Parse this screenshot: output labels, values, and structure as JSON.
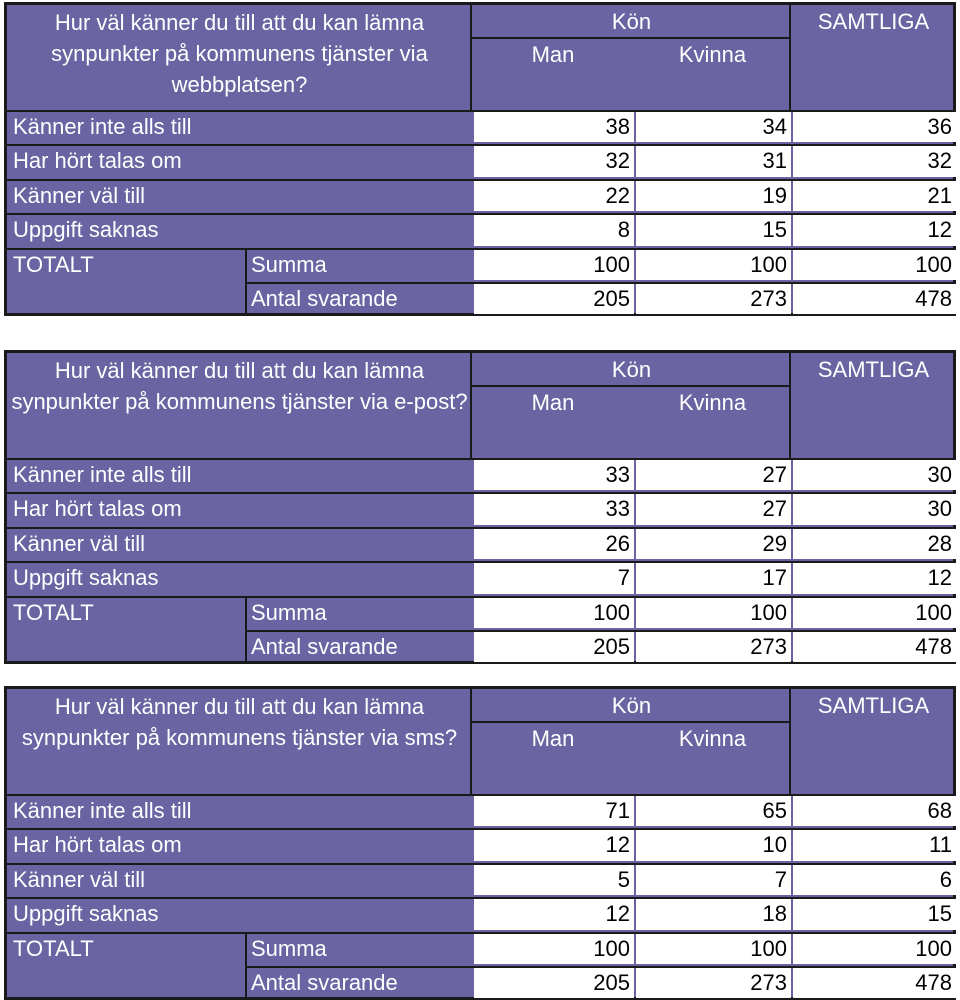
{
  "tables": [
    {
      "question": "Hur väl känner du till att du kan lämna synpunkter på kommunens tjänster via webbplatsen?",
      "group_header": "Kön",
      "total_header": "SAMTLIGA",
      "col_man": "Man",
      "col_kvinna": "Kvinna",
      "rows": [
        {
          "label": "Känner inte alls till",
          "man": "38",
          "kvinna": "34",
          "samtliga": "36"
        },
        {
          "label": "Har hört talas om",
          "man": "32",
          "kvinna": "31",
          "samtliga": "32"
        },
        {
          "label": "Känner väl till",
          "man": "22",
          "kvinna": "19",
          "samtliga": "21"
        },
        {
          "label": "Uppgift saknas",
          "man": "8",
          "kvinna": "15",
          "samtliga": "12"
        }
      ],
      "total_label": "TOTALT",
      "summa_label": "Summa",
      "summa": {
        "man": "100",
        "kvinna": "100",
        "samtliga": "100"
      },
      "antal_label": "Antal svarande",
      "antal": {
        "man": "205",
        "kvinna": "273",
        "samtliga": "478"
      }
    },
    {
      "question": "Hur väl känner du till att du kan lämna synpunkter på kommunens tjänster via e-post?",
      "group_header": "Kön",
      "total_header": "SAMTLIGA",
      "col_man": "Man",
      "col_kvinna": "Kvinna",
      "rows": [
        {
          "label": "Känner inte alls till",
          "man": "33",
          "kvinna": "27",
          "samtliga": "30"
        },
        {
          "label": "Har hört talas om",
          "man": "33",
          "kvinna": "27",
          "samtliga": "30"
        },
        {
          "label": "Känner väl till",
          "man": "26",
          "kvinna": "29",
          "samtliga": "28"
        },
        {
          "label": "Uppgift saknas",
          "man": "7",
          "kvinna": "17",
          "samtliga": "12"
        }
      ],
      "total_label": "TOTALT",
      "summa_label": "Summa",
      "summa": {
        "man": "100",
        "kvinna": "100",
        "samtliga": "100"
      },
      "antal_label": "Antal svarande",
      "antal": {
        "man": "205",
        "kvinna": "273",
        "samtliga": "478"
      }
    },
    {
      "question": "Hur väl känner du till att du kan lämna synpunkter på kommunens tjänster via sms?",
      "group_header": "Kön",
      "total_header": "SAMTLIGA",
      "col_man": "Man",
      "col_kvinna": "Kvinna",
      "rows": [
        {
          "label": "Känner inte alls till",
          "man": "71",
          "kvinna": "65",
          "samtliga": "68"
        },
        {
          "label": "Har hört talas om",
          "man": "12",
          "kvinna": "10",
          "samtliga": "11"
        },
        {
          "label": "Känner väl till",
          "man": "5",
          "kvinna": "7",
          "samtliga": "6"
        },
        {
          "label": "Uppgift saknas",
          "man": "12",
          "kvinna": "18",
          "samtliga": "15"
        }
      ],
      "total_label": "TOTALT",
      "summa_label": "Summa",
      "summa": {
        "man": "100",
        "kvinna": "100",
        "samtliga": "100"
      },
      "antal_label": "Antal svarande",
      "antal": {
        "man": "205",
        "kvinna": "273",
        "samtliga": "478"
      }
    }
  ]
}
